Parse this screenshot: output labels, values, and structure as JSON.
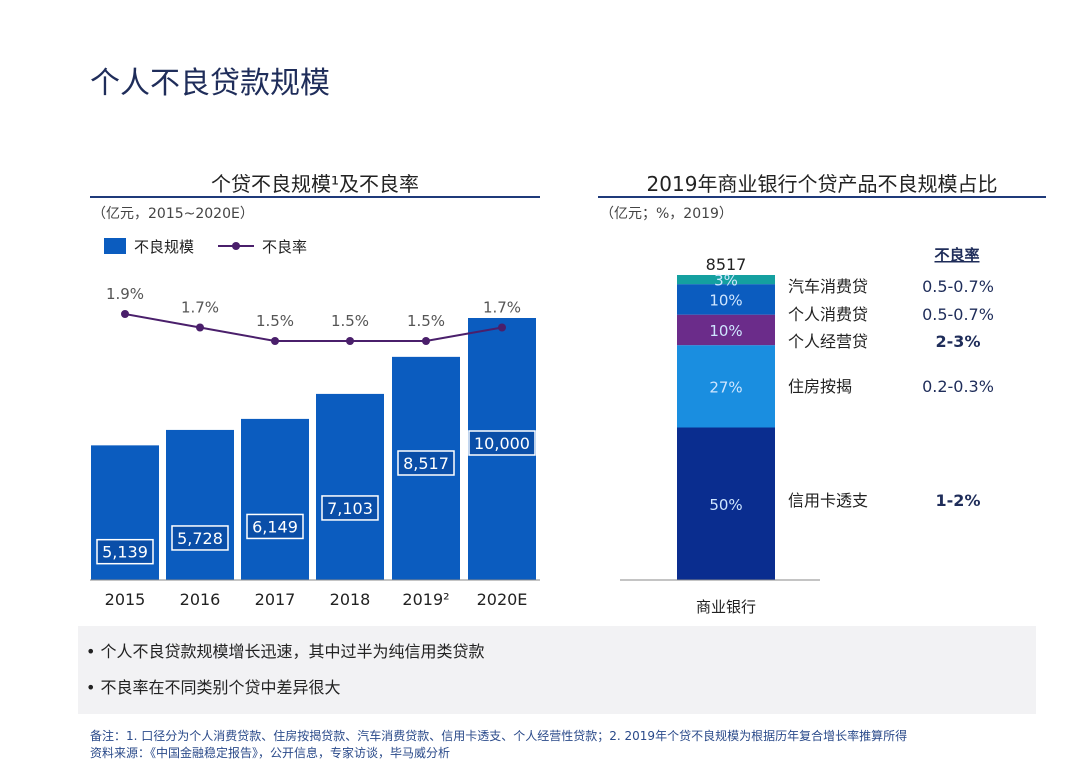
{
  "title": "个人不良贷款规模",
  "chart_data": [
    {
      "type": "bar+line",
      "title": "个贷不良规模¹及不良率",
      "subtitle": "（亿元，2015~2020E）",
      "legend": [
        "不良规模",
        "不良率"
      ],
      "legend_placement": "top-left",
      "categories": [
        "2015",
        "2016",
        "2017",
        "2018",
        "2019²",
        "2020E"
      ],
      "series": [
        {
          "name": "不良规模",
          "type": "bar",
          "values": [
            5139,
            5728,
            6149,
            7103,
            8517,
            10000
          ],
          "labels": [
            "5,139",
            "5,728",
            "6,149",
            "7,103",
            "8,517",
            "10,000"
          ],
          "color": "#0b5cbf"
        },
        {
          "name": "不良率",
          "type": "line",
          "values": [
            1.9,
            1.7,
            1.5,
            1.5,
            1.5,
            1.7
          ],
          "labels": [
            "1.9%",
            "1.7%",
            "1.5%",
            "1.5%",
            "1.5%",
            "1.7%"
          ],
          "color": "#4a1f6b"
        }
      ],
      "grid": false
    },
    {
      "type": "stacked-bar",
      "title": "2019年商业银行个贷产品不良规模占比",
      "subtitle": "（亿元；%，2019）",
      "category": "商业银行",
      "total": "8517",
      "rate_header": "不良率",
      "segments": [
        {
          "name": "信用卡透支",
          "value": 50,
          "label": "50%",
          "rate": "1-2%",
          "bold": true,
          "color": "#0a2d8f"
        },
        {
          "name": "住房按揭",
          "value": 27,
          "label": "27%",
          "rate": "0.2-0.3%",
          "bold": false,
          "color": "#1a8ee0"
        },
        {
          "name": "个人经营贷",
          "value": 10,
          "label": "10%",
          "rate": "2-3%",
          "bold": true,
          "color": "#6b2c8a"
        },
        {
          "name": "个人消费贷",
          "value": 10,
          "label": "10%",
          "rate": "0.5-0.7%",
          "bold": false,
          "color": "#0b5cbf"
        },
        {
          "name": "汽车消费贷",
          "value": 3,
          "label": "3%",
          "rate": "0.5-0.7%",
          "bold": false,
          "color": "#14a0a0"
        }
      ]
    }
  ],
  "notes": [
    "• 个人不良贷款规模增长迅速，其中过半为纯信用类贷款",
    "• 不良率在不同类别个贷中差异很大"
  ],
  "footnote": "备注：1. 口径分为个人消费贷款、住房按揭贷款、汽车消费贷款、信用卡透支、个人经营性贷款；2. 2019年个贷不良规模为根据历年复合增长率推算所得",
  "source": "资料来源：《中国金融稳定报告》，公开信息，专家访谈，毕马威分析"
}
